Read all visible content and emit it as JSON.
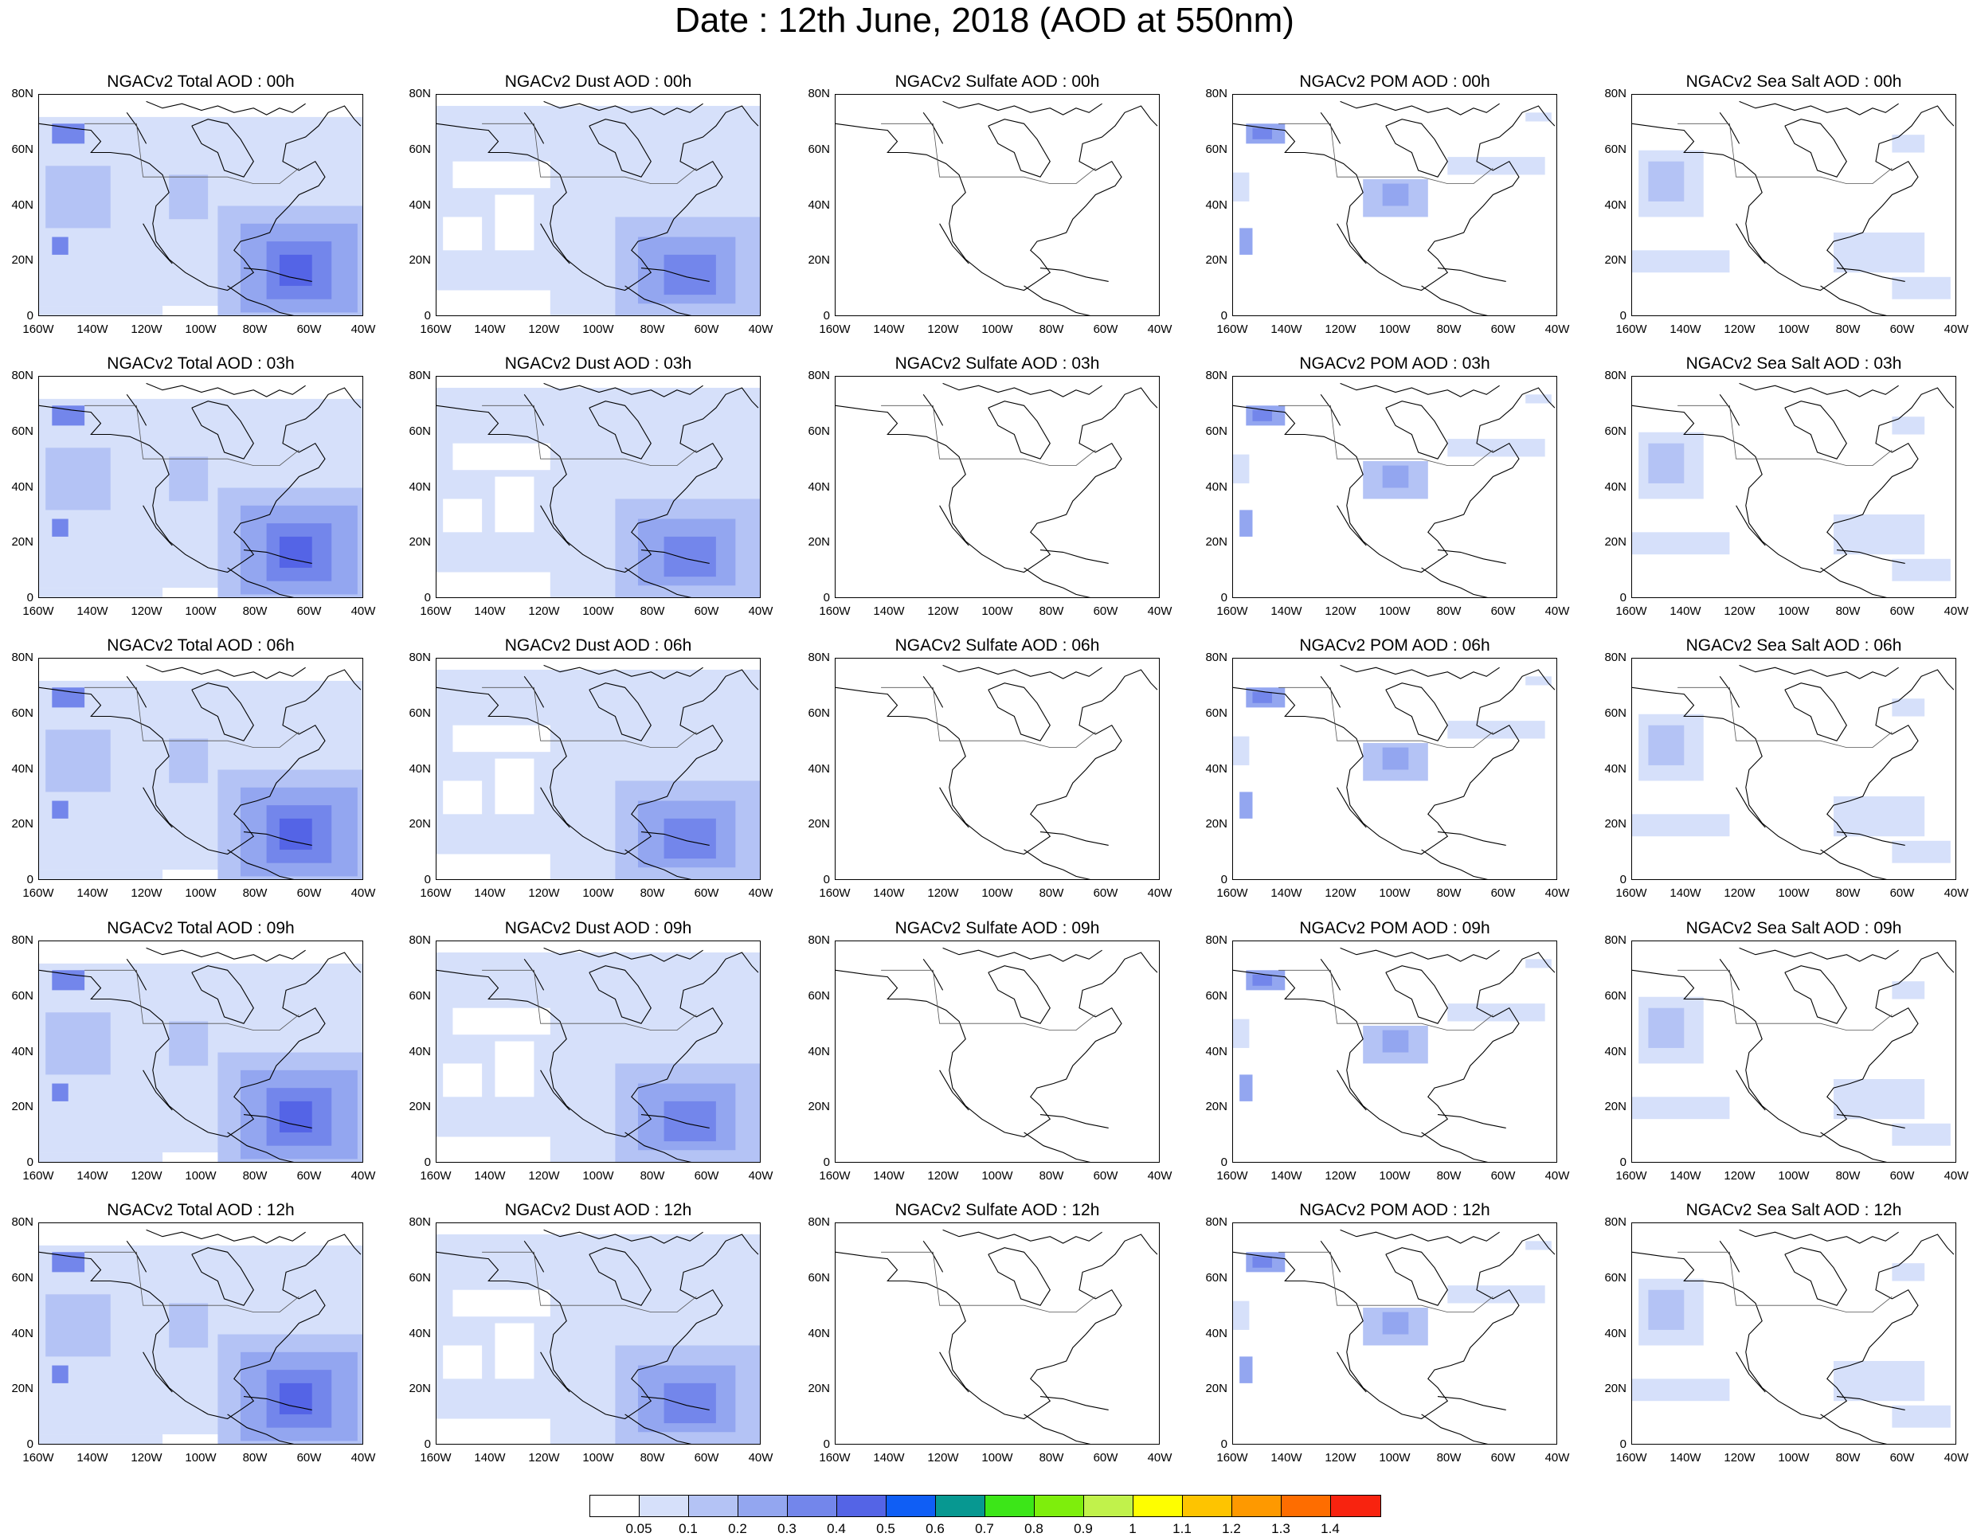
{
  "title": "Date : 12th June, 2018 (AOD at 550nm)",
  "axes": {
    "y_ticks": [
      "80N",
      "60N",
      "40N",
      "20N",
      "0"
    ],
    "x_ticks": [
      "160W",
      "140W",
      "120W",
      "100W",
      "80W",
      "60W",
      "40W"
    ]
  },
  "panels": [
    [
      "NGACv2 Total AOD : 00h",
      "NGACv2 Dust AOD : 00h",
      "NGACv2 Sulfate AOD : 00h",
      "NGACv2 POM AOD : 00h",
      "NGACv2 Sea Salt AOD : 00h"
    ],
    [
      "NGACv2 Total AOD : 03h",
      "NGACv2 Dust AOD : 03h",
      "NGACv2 Sulfate AOD : 03h",
      "NGACv2 POM AOD : 03h",
      "NGACv2 Sea Salt AOD : 03h"
    ],
    [
      "NGACv2 Total AOD : 06h",
      "NGACv2 Dust AOD : 06h",
      "NGACv2 Sulfate AOD : 06h",
      "NGACv2 POM AOD : 06h",
      "NGACv2 Sea Salt AOD : 06h"
    ],
    [
      "NGACv2 Total AOD : 09h",
      "NGACv2 Dust AOD : 09h",
      "NGACv2 Sulfate AOD : 09h",
      "NGACv2 POM AOD : 09h",
      "NGACv2 Sea Salt  AOD : 09h"
    ],
    [
      "NGACv2 Total AOD  : 12h",
      "NGACv2 Dust AOD : 12h",
      "NGACv2 Sulfate AOD : 12h",
      "NGACv2 POM  AOD : 12h",
      "NGACv2 Sea Salt  AOD : 12h"
    ]
  ],
  "colorbar": {
    "labels": [
      "0.05",
      "0.1",
      "0.2",
      "0.3",
      "0.4",
      "0.5",
      "0.6",
      "0.7",
      "0.8",
      "0.9",
      "1",
      "1.1",
      "1.2",
      "1.3",
      "1.4"
    ],
    "colors": [
      "#ffffff",
      "#d6e0fa",
      "#b4c3f5",
      "#93a6f0",
      "#7386eb",
      "#5464e6",
      "#0f5ef5",
      "#079891",
      "#3ce618",
      "#7eee0c",
      "#c1f24b",
      "#fefe00",
      "#fec400",
      "#fe9900",
      "#fe6d00",
      "#f8230f"
    ]
  }
}
